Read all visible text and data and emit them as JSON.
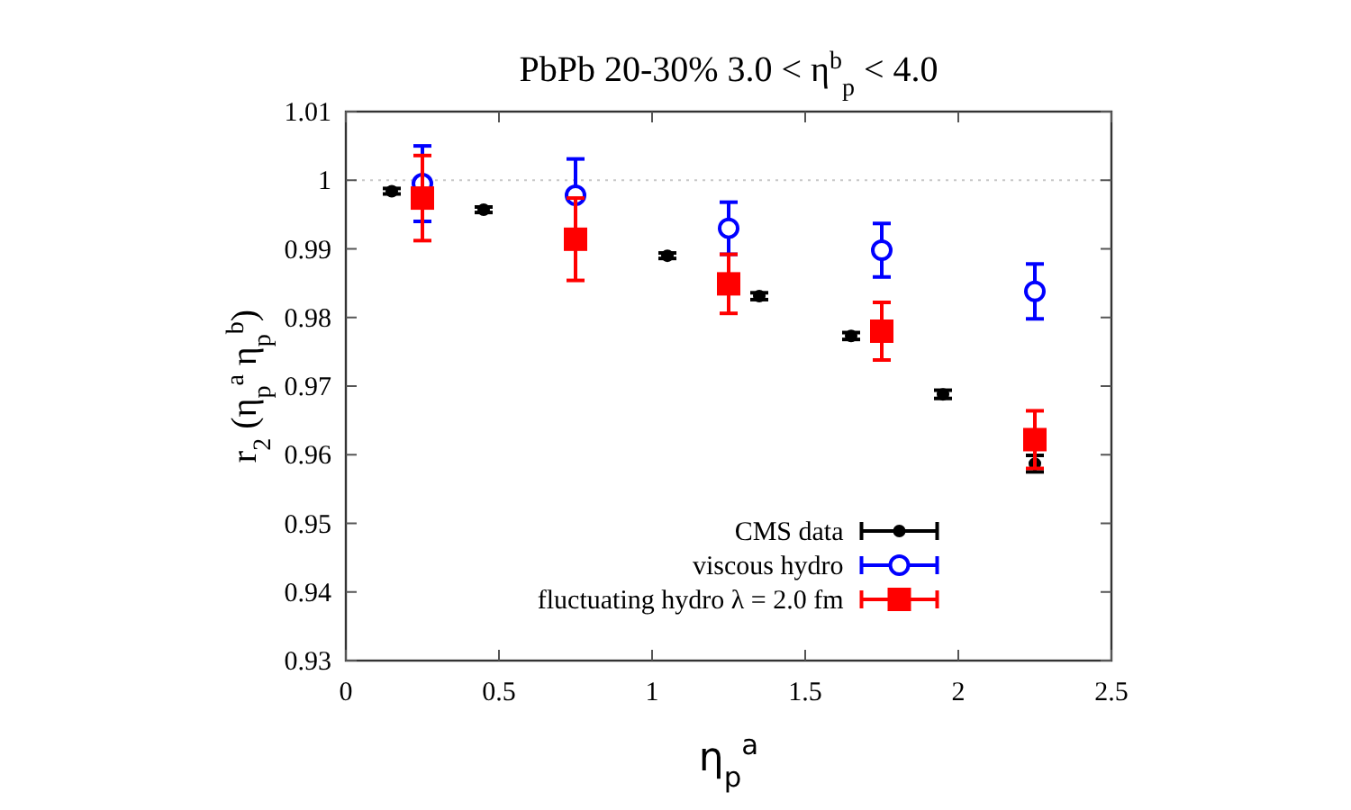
{
  "chart_data": {
    "type": "scatter",
    "title": "PbPb 20-30%  3.0 < η$^{b}$$_{p}$ < 4.0",
    "xlabel": "η$_{p}$$^{a}$",
    "ylabel": "r$_{2}$ (η$_{p}$$^{a}$ η$_{p}$$^{b}$)",
    "xlim": [
      0,
      2.5
    ],
    "xticks": [
      0,
      0.5,
      1,
      1.5,
      2,
      2.5
    ],
    "ylim": [
      0.93,
      1.01
    ],
    "yticks": [
      0.93,
      0.94,
      0.95,
      0.96,
      0.97,
      0.98,
      0.99,
      1,
      1.01
    ],
    "grid": false,
    "legend": "bottom",
    "ref_lines": [
      {
        "axis": "y",
        "value": 1,
        "color": "#c8c8c8",
        "line_style": "dotted"
      }
    ],
    "series": [
      {
        "name": "CMS data",
        "color": "#000000",
        "marker": "circle",
        "x": [
          0.15,
          0.45,
          1.05,
          1.35,
          1.65,
          1.95,
          2.25
        ],
        "values": [
          0.9984,
          0.9957,
          0.989,
          0.9831,
          0.9773,
          0.9688,
          0.9587
        ],
        "errors": [
          0.0004,
          0.0004,
          0.0004,
          0.0005,
          0.0005,
          0.0006,
          0.0012
        ]
      },
      {
        "name": "viscous hydro",
        "color": "#0000ff",
        "marker": "circle",
        "x": [
          0.25,
          0.75,
          1.25,
          1.75,
          2.25
        ],
        "values": [
          0.9995,
          0.9978,
          0.993,
          0.9898,
          0.9838
        ],
        "errors": [
          0.0055,
          0.0053,
          0.0038,
          0.0039,
          0.004
        ]
      },
      {
        "name": "fluctuating hydro λ = 2.0 fm",
        "color": "#ff0000",
        "marker": "square",
        "x": [
          0.25,
          0.75,
          1.25,
          1.75,
          2.25
        ],
        "values": [
          0.9974,
          0.9914,
          0.9849,
          0.978,
          0.9622
        ],
        "errors": [
          0.0062,
          0.006,
          0.0043,
          0.0042,
          0.0042
        ]
      }
    ]
  }
}
